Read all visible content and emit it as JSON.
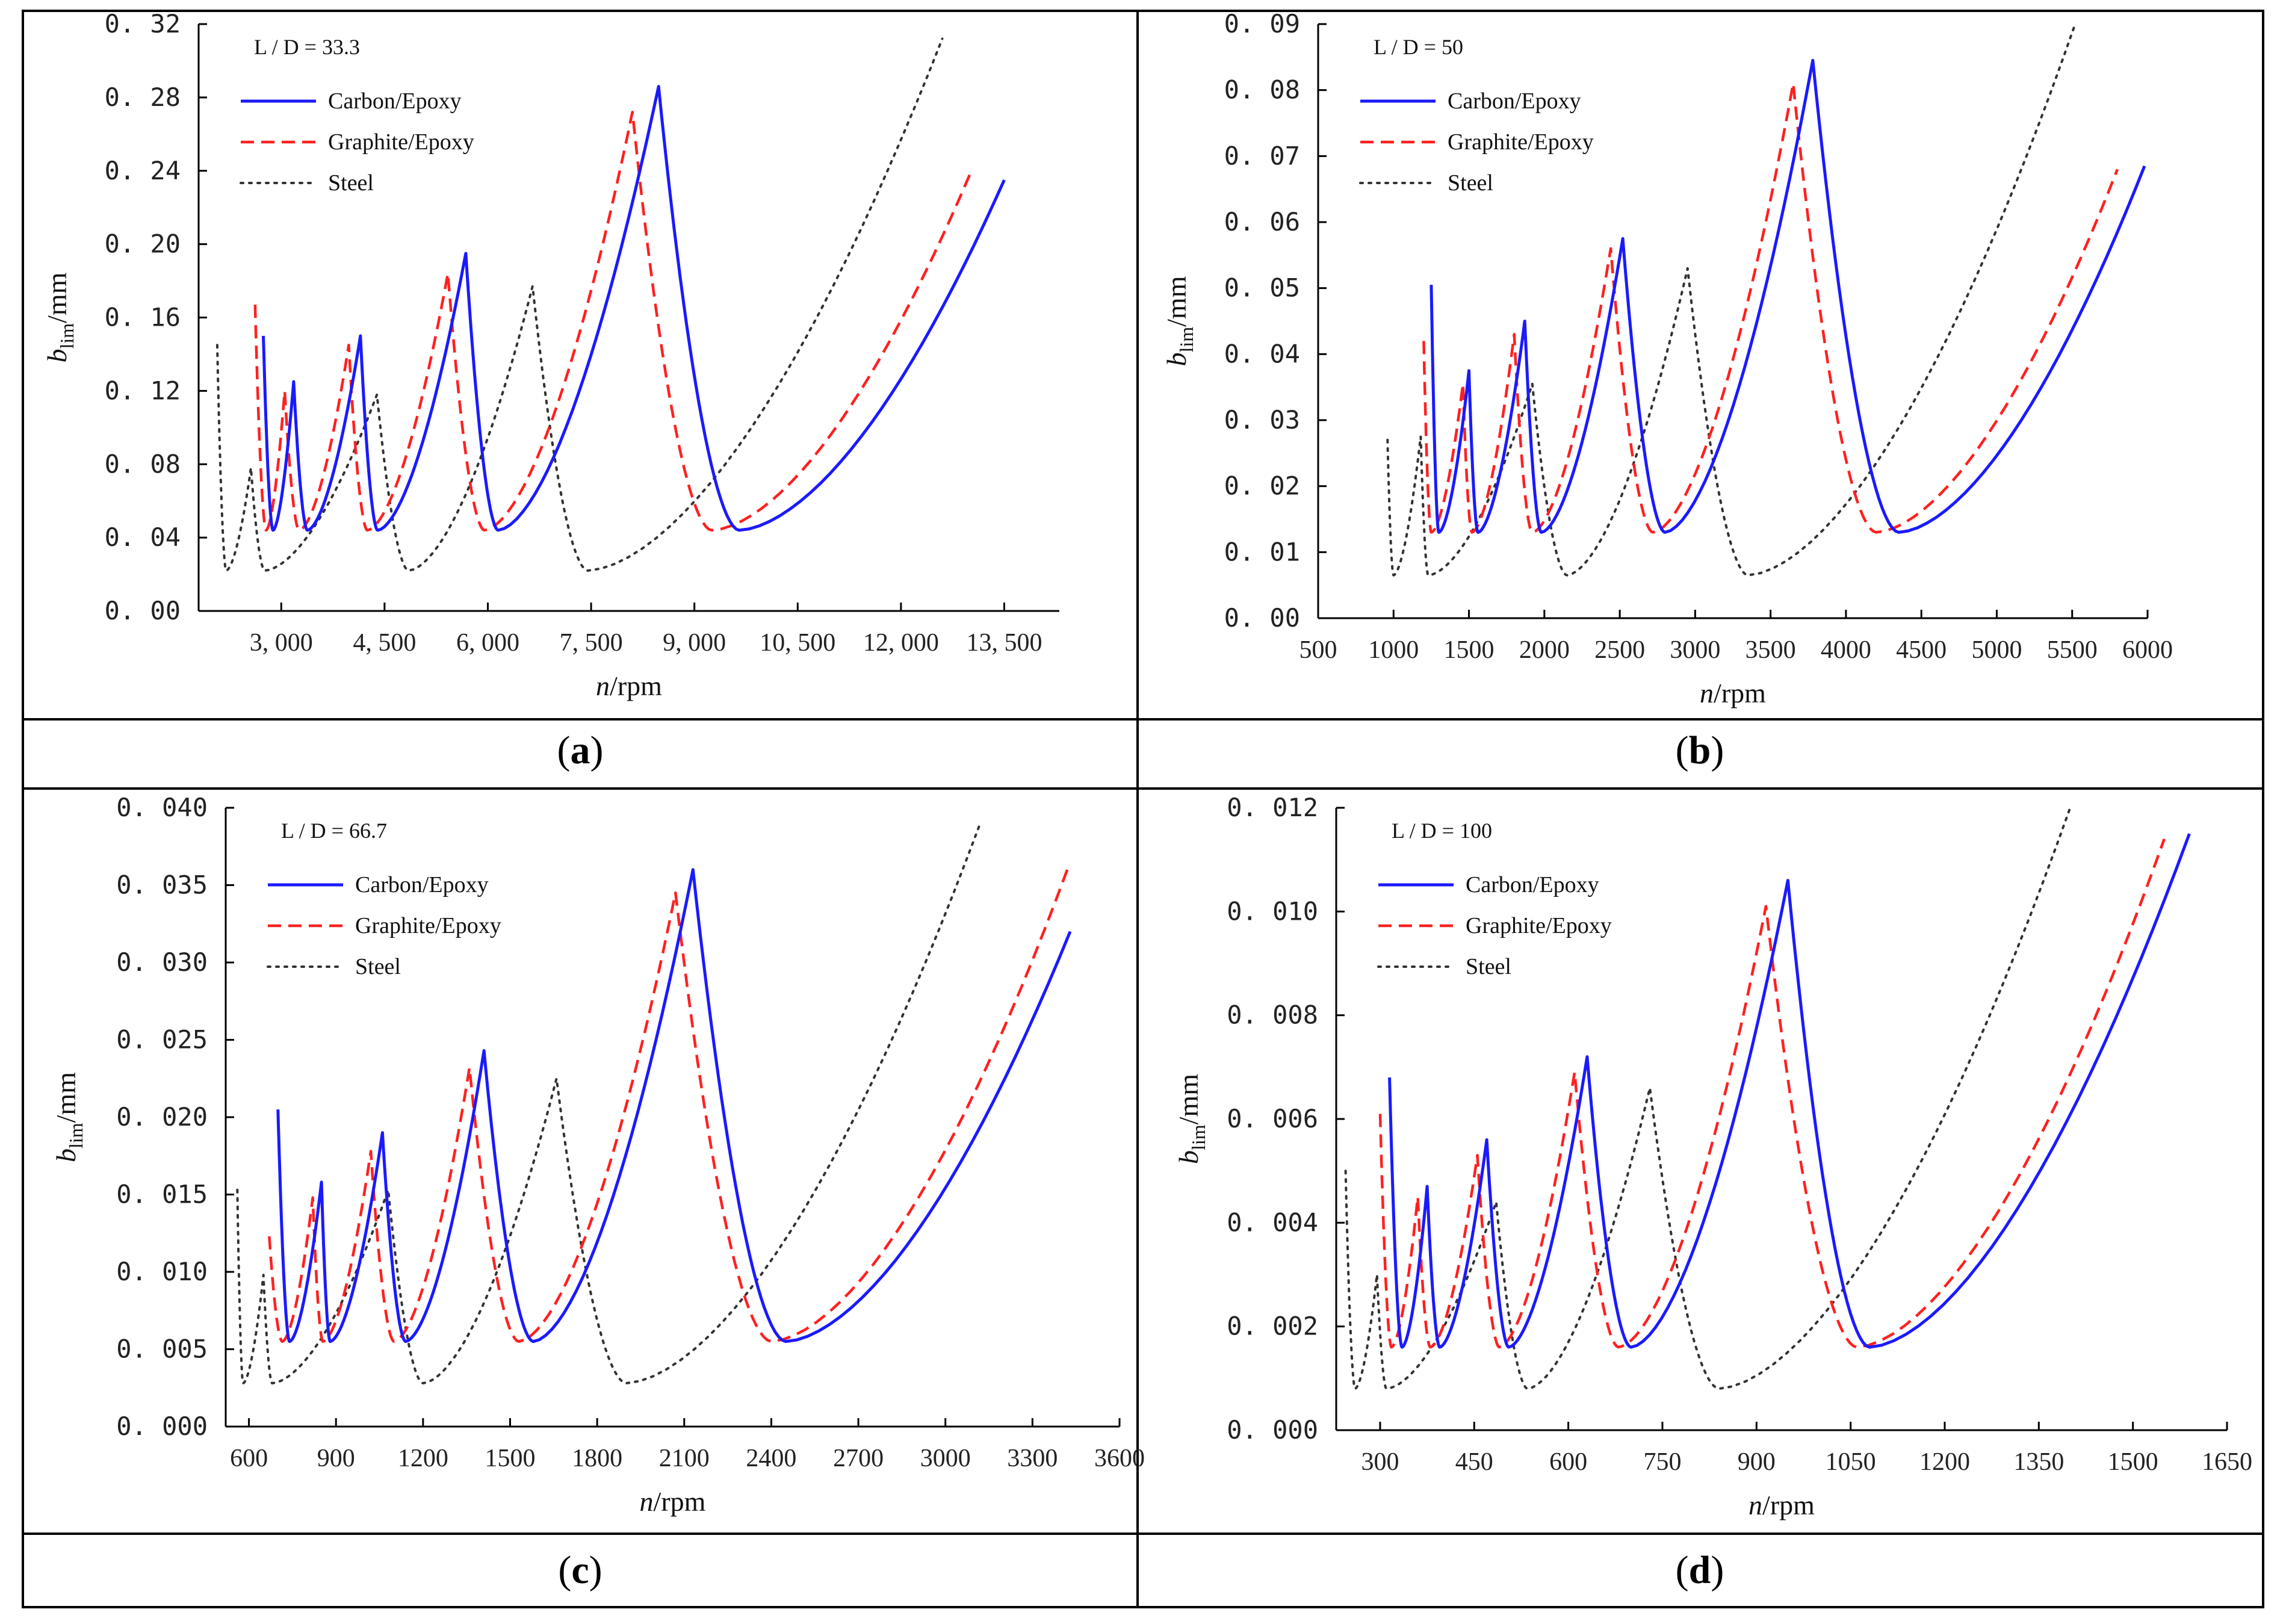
{
  "colors": {
    "carbon": "#1a1aff",
    "graphite": "#ff2020",
    "steel": "#333333",
    "frame": "#000000"
  },
  "legend": {
    "carbon": "Carbon/Epoxy",
    "graphite": "Graphite/Epoxy",
    "steel": "Steel"
  },
  "charts": [
    {
      "caption_letter": "a",
      "ld_label": "L / D = 33.3",
      "ylabel": {
        "base": "b",
        "sub": "lim",
        "suffix": "/mm"
      },
      "xlabel": {
        "italic": "n",
        "suffix": "/rpm"
      },
      "xlim": [
        1800,
        14300
      ],
      "ylim": [
        0,
        0.32
      ],
      "xticks": [
        3000,
        4500,
        6000,
        7500,
        9000,
        10500,
        12000,
        13500
      ],
      "xtick_labels": [
        "3, 000",
        "4, 500",
        "6, 000",
        "7, 500",
        "9, 000",
        "10, 500",
        "12, 000",
        "13, 500"
      ],
      "yticks": [
        0,
        0.04,
        0.08,
        0.12,
        0.16,
        0.2,
        0.24,
        0.28,
        0.32
      ],
      "ytick_labels": [
        "0. 00",
        "0. 04",
        "0. 08",
        "0. 12",
        "0. 16",
        "0. 20",
        "0. 24",
        "0. 28",
        "0. 32"
      ],
      "carbon": [
        [
          2740,
          0.15
        ],
        [
          2880,
          0.044
        ],
        [
          3180,
          0.125
        ],
        [
          3380,
          0.044
        ],
        [
          4150,
          0.15
        ],
        [
          4400,
          0.044
        ],
        [
          5680,
          0.195
        ],
        [
          6150,
          0.044
        ],
        [
          8480,
          0.286
        ],
        [
          9650,
          0.044
        ],
        [
          13500,
          0.235
        ]
      ],
      "graphite": [
        [
          2620,
          0.167
        ],
        [
          2780,
          0.044
        ],
        [
          3050,
          0.12
        ],
        [
          3260,
          0.044
        ],
        [
          3980,
          0.145
        ],
        [
          4250,
          0.044
        ],
        [
          5420,
          0.184
        ],
        [
          5950,
          0.044
        ],
        [
          8100,
          0.272
        ],
        [
          9250,
          0.044
        ],
        [
          13000,
          0.238
        ]
      ],
      "steel": [
        [
          2070,
          0.145
        ],
        [
          2200,
          0.022
        ],
        [
          2560,
          0.078
        ],
        [
          2760,
          0.022
        ],
        [
          4390,
          0.118
        ],
        [
          4850,
          0.022
        ],
        [
          6650,
          0.177
        ],
        [
          7450,
          0.022
        ],
        [
          12600,
          0.312
        ]
      ]
    },
    {
      "caption_letter": "b",
      "ld_label": "L / D = 50",
      "ylabel": {
        "base": "b",
        "sub": "lim",
        "suffix": "/mm"
      },
      "xlabel": {
        "italic": "n",
        "suffix": "/rpm"
      },
      "xlim": [
        500,
        6000
      ],
      "ylim": [
        0,
        0.09
      ],
      "xticks": [
        500,
        1000,
        1500,
        2000,
        2500,
        3000,
        3500,
        4000,
        4500,
        5000,
        5500,
        6000
      ],
      "xtick_labels": [
        "500",
        "1000",
        "1500",
        "2000",
        "2500",
        "3000",
        "3500",
        "4000",
        "4500",
        "5000",
        "5500",
        "6000"
      ],
      "yticks": [
        0,
        0.01,
        0.02,
        0.03,
        0.04,
        0.05,
        0.06,
        0.07,
        0.08,
        0.09
      ],
      "ytick_labels": [
        "0. 00",
        "0. 01",
        "0. 02",
        "0. 03",
        "0. 04",
        "0. 05",
        "0. 06",
        "0. 07",
        "0. 08",
        "0. 09"
      ],
      "carbon": [
        [
          1250,
          0.0505
        ],
        [
          1300,
          0.013
        ],
        [
          1500,
          0.0375
        ],
        [
          1560,
          0.013
        ],
        [
          1870,
          0.045
        ],
        [
          1980,
          0.013
        ],
        [
          2520,
          0.0575
        ],
        [
          2800,
          0.013
        ],
        [
          3780,
          0.0845
        ],
        [
          4350,
          0.013
        ],
        [
          5980,
          0.0685
        ]
      ],
      "graphite": [
        [
          1200,
          0.042
        ],
        [
          1250,
          0.013
        ],
        [
          1460,
          0.0355
        ],
        [
          1520,
          0.013
        ],
        [
          1800,
          0.043
        ],
        [
          1920,
          0.013
        ],
        [
          2440,
          0.056
        ],
        [
          2720,
          0.013
        ],
        [
          3650,
          0.081
        ],
        [
          4200,
          0.013
        ],
        [
          5800,
          0.068
        ]
      ],
      "steel": [
        [
          960,
          0.027
        ],
        [
          1000,
          0.0065
        ],
        [
          1180,
          0.0275
        ],
        [
          1230,
          0.0065
        ],
        [
          1920,
          0.0355
        ],
        [
          2150,
          0.0065
        ],
        [
          2950,
          0.053
        ],
        [
          3350,
          0.0065
        ],
        [
          5520,
          0.09
        ]
      ]
    },
    {
      "caption_letter": "c",
      "ld_label": "L / D = 66.7",
      "ylabel": {
        "base": "b",
        "sub": "lim",
        "suffix": "/mm"
      },
      "xlabel": {
        "italic": "n",
        "suffix": "/rpm"
      },
      "xlim": [
        520,
        3600
      ],
      "ylim": [
        0,
        0.04
      ],
      "xticks": [
        600,
        900,
        1200,
        1500,
        1800,
        2100,
        2400,
        2700,
        3000,
        3300,
        3600
      ],
      "xtick_labels": [
        "600",
        "900",
        "1200",
        "1500",
        "1800",
        "2100",
        "2400",
        "2700",
        "3000",
        "3300",
        "3600"
      ],
      "yticks": [
        0,
        0.005,
        0.01,
        0.015,
        0.02,
        0.025,
        0.03,
        0.035,
        0.04
      ],
      "ytick_labels": [
        "0. 000",
        "0. 005",
        "0. 010",
        "0. 015",
        "0. 020",
        "0. 025",
        "0. 030",
        "0. 035",
        "0. 040"
      ],
      "carbon": [
        [
          700,
          0.0205
        ],
        [
          740,
          0.0055
        ],
        [
          850,
          0.0158
        ],
        [
          880,
          0.0055
        ],
        [
          1060,
          0.019
        ],
        [
          1140,
          0.0055
        ],
        [
          1410,
          0.0243
        ],
        [
          1580,
          0.0055
        ],
        [
          2130,
          0.036
        ],
        [
          2450,
          0.0055
        ],
        [
          3430,
          0.032
        ]
      ],
      "graphite": [
        [
          670,
          0.0123
        ],
        [
          715,
          0.0055
        ],
        [
          820,
          0.0148
        ],
        [
          855,
          0.0055
        ],
        [
          1020,
          0.0178
        ],
        [
          1100,
          0.0055
        ],
        [
          1360,
          0.0232
        ],
        [
          1530,
          0.0055
        ],
        [
          2070,
          0.0345
        ],
        [
          2400,
          0.0055
        ],
        [
          3420,
          0.036
        ]
      ],
      "steel": [
        [
          560,
          0.0153
        ],
        [
          580,
          0.0028
        ],
        [
          650,
          0.0098
        ],
        [
          680,
          0.0028
        ],
        [
          1080,
          0.0153
        ],
        [
          1200,
          0.0028
        ],
        [
          1660,
          0.0225
        ],
        [
          1900,
          0.0028
        ],
        [
          3120,
          0.039
        ]
      ]
    },
    {
      "caption_letter": "d",
      "ld_label": "L / D = 100",
      "ylabel": {
        "base": "b",
        "sub": "lim",
        "suffix": "/mm"
      },
      "xlabel": {
        "italic": "n",
        "suffix": "/rpm"
      },
      "xlim": [
        230,
        1650
      ],
      "ylim": [
        0,
        0.012
      ],
      "xticks": [
        300,
        450,
        600,
        750,
        900,
        1050,
        1200,
        1350,
        1500,
        1650
      ],
      "xtick_labels": [
        "300",
        "450",
        "600",
        "750",
        "900",
        "1050",
        "1200",
        "1350",
        "1500",
        "1650"
      ],
      "yticks": [
        0,
        0.002,
        0.004,
        0.006,
        0.008,
        0.01,
        0.012
      ],
      "ytick_labels": [
        "0. 000",
        "0. 002",
        "0. 004",
        "0. 006",
        "0. 008",
        "0. 010",
        "0. 012"
      ],
      "carbon": [
        [
          315,
          0.0068
        ],
        [
          335,
          0.0016
        ],
        [
          375,
          0.0047
        ],
        [
          395,
          0.0016
        ],
        [
          470,
          0.0056
        ],
        [
          505,
          0.0016
        ],
        [
          630,
          0.0072
        ],
        [
          700,
          0.0016
        ],
        [
          950,
          0.0106
        ],
        [
          1080,
          0.0016
        ],
        [
          1590,
          0.0115
        ]
      ],
      "graphite": [
        [
          300,
          0.0061
        ],
        [
          318,
          0.0016
        ],
        [
          360,
          0.0045
        ],
        [
          380,
          0.0016
        ],
        [
          455,
          0.0053
        ],
        [
          490,
          0.0016
        ],
        [
          610,
          0.0069
        ],
        [
          680,
          0.0016
        ],
        [
          915,
          0.0101
        ],
        [
          1060,
          0.0016
        ],
        [
          1550,
          0.0114
        ]
      ],
      "steel": [
        [
          245,
          0.005
        ],
        [
          260,
          0.0008
        ],
        [
          295,
          0.003
        ],
        [
          310,
          0.0008
        ],
        [
          485,
          0.0044
        ],
        [
          535,
          0.0008
        ],
        [
          730,
          0.0066
        ],
        [
          840,
          0.0008
        ],
        [
          1400,
          0.012
        ]
      ]
    }
  ]
}
